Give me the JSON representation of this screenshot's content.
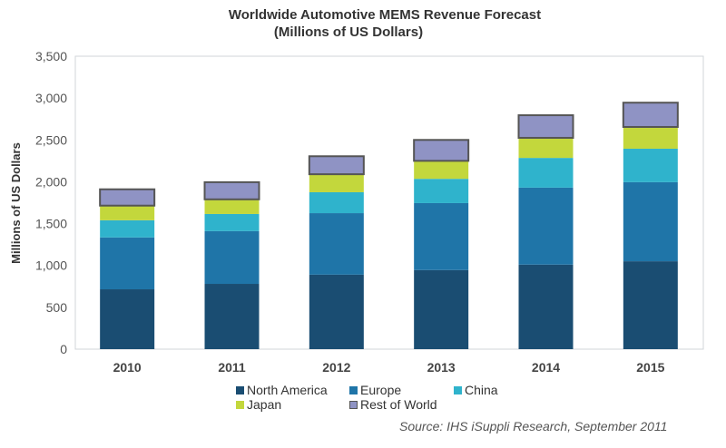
{
  "chart_data": {
    "type": "bar",
    "stacked": true,
    "title": "Worldwide Automotive MEMS Revenue Forecast",
    "subtitle": "(Millions of US Dollars)",
    "xlabel": "",
    "ylabel": "Millions of US Dollars",
    "ylim": [
      0,
      3500
    ],
    "yticks": [
      0,
      500,
      1000,
      1500,
      2000,
      2500,
      3000,
      3500
    ],
    "ytick_labels": [
      "0",
      "500",
      "1,000",
      "1,500",
      "2,000",
      "2,500",
      "3,000",
      "3,500"
    ],
    "grid": false,
    "categories": [
      "2010",
      "2011",
      "2012",
      "2013",
      "2014",
      "2015"
    ],
    "series": [
      {
        "name": "North America",
        "color": "#1a4d72",
        "values": [
          715,
          780,
          890,
          945,
          1010,
          1050
        ]
      },
      {
        "name": "Europe",
        "color": "#1f75a8",
        "values": [
          620,
          630,
          735,
          800,
          920,
          945
        ]
      },
      {
        "name": "China",
        "color": "#2fb3cc",
        "values": [
          205,
          205,
          250,
          290,
          355,
          400
        ]
      },
      {
        "name": "Japan",
        "color": "#c3d73c",
        "values": [
          175,
          175,
          215,
          215,
          240,
          260
        ]
      },
      {
        "name": "Rest of World",
        "color": "#8f93c4",
        "border": "#555555",
        "values": [
          195,
          205,
          215,
          250,
          270,
          290
        ]
      }
    ],
    "legend_position": "bottom",
    "source": "Source: IHS iSuppli Research, September 2011"
  }
}
